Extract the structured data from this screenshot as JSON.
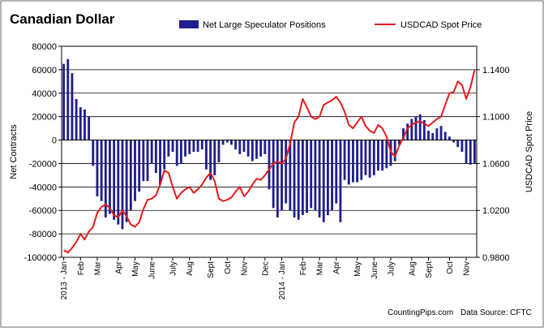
{
  "chart_data": {
    "type": "bar",
    "title": "Canadian Dollar",
    "ylabel": "Net Contracts",
    "y2label": "USDCAD Spot Price",
    "ylim": [
      -100000,
      80000
    ],
    "y2lim": [
      0.98,
      1.16
    ],
    "yticks": [
      80000,
      60000,
      40000,
      20000,
      0,
      -20000,
      -40000,
      -60000,
      -80000,
      -100000
    ],
    "ytick_labels": [
      "80000",
      "60000",
      "40000",
      "20000",
      "0",
      "-20000",
      "-40000",
      "-60000",
      "-80000",
      "-100000"
    ],
    "y2ticks": [
      1.14,
      1.1,
      1.06,
      1.02,
      0.98
    ],
    "y2tick_labels": [
      "1.1400",
      "1.1000",
      "1.0600",
      "1.0200",
      "0.9800"
    ],
    "xtick_labels": [
      {
        "i": 0,
        "text": "2013 - Jan"
      },
      {
        "i": 4,
        "text": "Feb"
      },
      {
        "i": 8,
        "text": "Mar"
      },
      {
        "i": 13,
        "text": "Apr"
      },
      {
        "i": 17,
        "text": "May"
      },
      {
        "i": 21,
        "text": "June"
      },
      {
        "i": 26,
        "text": "July"
      },
      {
        "i": 30,
        "text": "Aug"
      },
      {
        "i": 35,
        "text": "Sept"
      },
      {
        "i": 39,
        "text": "Oct"
      },
      {
        "i": 43,
        "text": "Nov"
      },
      {
        "i": 48,
        "text": "Dec"
      },
      {
        "i": 52,
        "text": "2014 - Jan"
      },
      {
        "i": 57,
        "text": "Feb"
      },
      {
        "i": 61,
        "text": "Mar"
      },
      {
        "i": 65,
        "text": "Apr"
      },
      {
        "i": 70,
        "text": "May"
      },
      {
        "i": 74,
        "text": "June"
      },
      {
        "i": 78,
        "text": "July"
      },
      {
        "i": 83,
        "text": "Aug"
      },
      {
        "i": 87,
        "text": "Sept"
      },
      {
        "i": 92,
        "text": "Oct"
      },
      {
        "i": 96,
        "text": "Nov"
      }
    ],
    "series": [
      {
        "name": "Net Large Speculator Positions",
        "type": "bar",
        "axis": "left",
        "color": "#1f1f8c",
        "values": [
          65000,
          69000,
          57000,
          35000,
          28000,
          26000,
          20000,
          -22000,
          -48000,
          -52000,
          -66000,
          -63000,
          -68000,
          -72000,
          -76000,
          -70000,
          -60000,
          -52000,
          -44000,
          -35000,
          -35000,
          -20000,
          -28000,
          -38000,
          -25000,
          -14000,
          -10000,
          -22000,
          -20000,
          -14000,
          -12000,
          -10000,
          -10000,
          -8000,
          -25000,
          -34000,
          -30000,
          -19000,
          -4000,
          -2000,
          -4000,
          -8000,
          -12000,
          -10000,
          -14000,
          -18000,
          -16000,
          -14000,
          -12000,
          -42000,
          -58000,
          -66000,
          -60000,
          -54000,
          -60000,
          -66000,
          -68000,
          -64000,
          -62000,
          -58000,
          -60000,
          -66000,
          -70000,
          -64000,
          -60000,
          -54000,
          -70000,
          -34000,
          -38000,
          -36000,
          -36000,
          -34000,
          -30000,
          -32000,
          -30000,
          -26000,
          -26000,
          -24000,
          -22000,
          -18000,
          -4000,
          10000,
          14000,
          18000,
          20000,
          22000,
          17000,
          8000,
          6000,
          10000,
          12000,
          7000,
          3000,
          -2000,
          -6000,
          -10000,
          -20000,
          -21000,
          -20000
        ]
      },
      {
        "name": "USDCAD Spot Price",
        "type": "line",
        "axis": "right",
        "color": "#e41a1c",
        "values": [
          0.986,
          0.984,
          0.988,
          0.993,
          1.0,
          0.995,
          1.002,
          1.006,
          1.018,
          1.023,
          1.025,
          1.022,
          1.016,
          1.014,
          1.02,
          1.015,
          1.008,
          1.006,
          1.01,
          1.021,
          1.029,
          1.03,
          1.033,
          1.042,
          1.054,
          1.052,
          1.04,
          1.03,
          1.035,
          1.038,
          1.04,
          1.035,
          1.038,
          1.042,
          1.048,
          1.052,
          1.045,
          1.03,
          1.028,
          1.029,
          1.031,
          1.036,
          1.04,
          1.032,
          1.036,
          1.042,
          1.047,
          1.046,
          1.05,
          1.055,
          1.06,
          1.062,
          1.06,
          1.064,
          1.077,
          1.095,
          1.1,
          1.115,
          1.108,
          1.1,
          1.098,
          1.1,
          1.11,
          1.112,
          1.114,
          1.117,
          1.112,
          1.104,
          1.093,
          1.09,
          1.095,
          1.1,
          1.092,
          1.088,
          1.086,
          1.093,
          1.09,
          1.083,
          1.07,
          1.066,
          1.075,
          1.082,
          1.09,
          1.093,
          1.095,
          1.096,
          1.094,
          1.092,
          1.095,
          1.098,
          1.1,
          1.11,
          1.12,
          1.121,
          1.13,
          1.127,
          1.115,
          1.125,
          1.14
        ]
      }
    ]
  },
  "footer": {
    "site": "CountingPips.com",
    "source": "Data Source: CFTC"
  }
}
